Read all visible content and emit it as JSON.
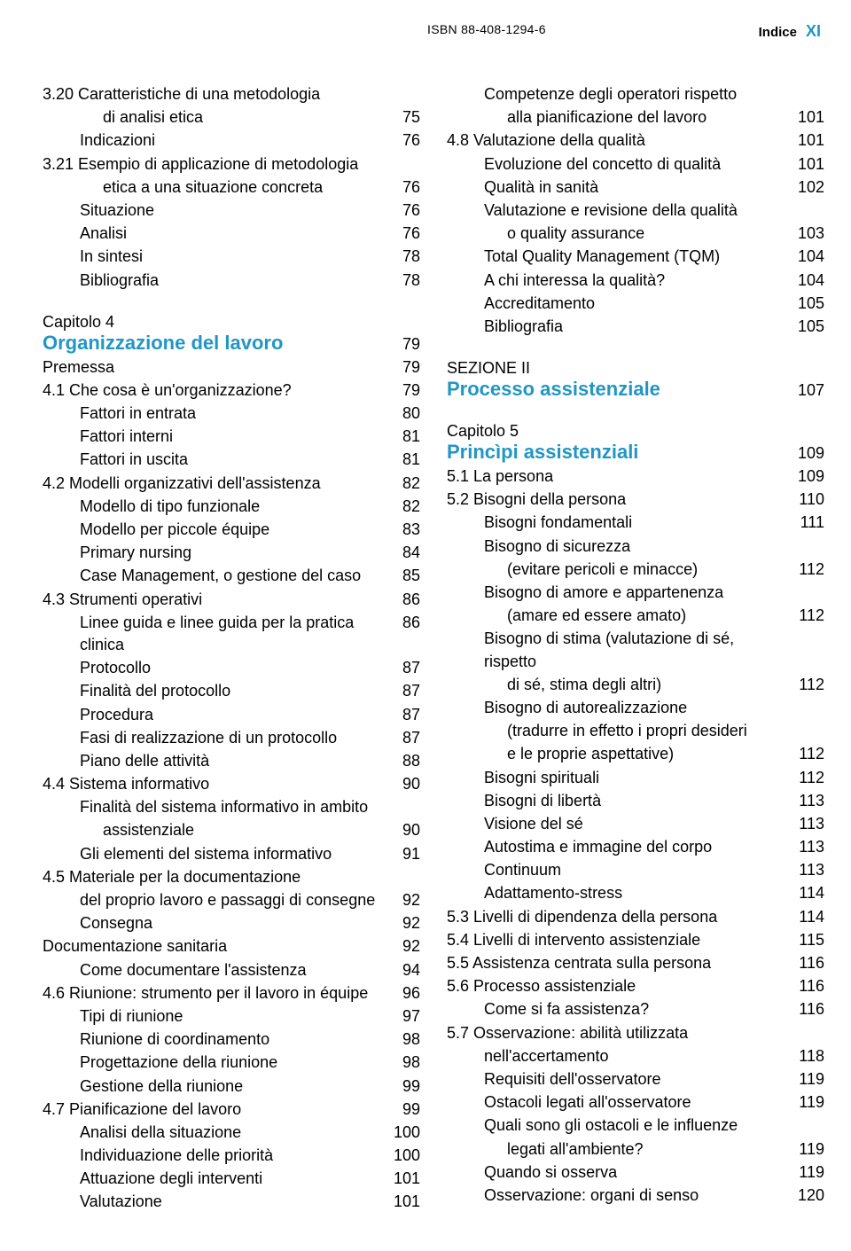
{
  "header": {
    "isbn": "ISBN 88-408-1294-6",
    "indice": "Indice",
    "pagenum": "XI"
  },
  "left": [
    {
      "kind": "entry",
      "cls": "num-entry sub0",
      "label": "3.20 Caratteristiche di una metodologia",
      "pg": ""
    },
    {
      "kind": "entry",
      "cls": "sub2",
      "label": "di analisi etica",
      "pg": "75"
    },
    {
      "kind": "entry",
      "cls": "sub1",
      "label": "Indicazioni",
      "pg": "76"
    },
    {
      "kind": "entry",
      "cls": "num-entry sub0",
      "label": "3.21 Esempio di applicazione di metodologia",
      "pg": ""
    },
    {
      "kind": "entry",
      "cls": "sub2",
      "label": "etica a una situazione concreta",
      "pg": "76"
    },
    {
      "kind": "entry",
      "cls": "sub1",
      "label": "Situazione",
      "pg": "76"
    },
    {
      "kind": "entry",
      "cls": "sub1",
      "label": "Analisi",
      "pg": "76"
    },
    {
      "kind": "entry",
      "cls": "sub1",
      "label": "In sintesi",
      "pg": "78"
    },
    {
      "kind": "entry",
      "cls": "sub1",
      "label": "Bibliografia",
      "pg": "78"
    },
    {
      "kind": "chapter-label",
      "label": "Capitolo 4"
    },
    {
      "kind": "chapter-title",
      "label": "Organizzazione del lavoro",
      "pg": "79"
    },
    {
      "kind": "entry",
      "cls": "sub0",
      "label": "Premessa",
      "pg": "79"
    },
    {
      "kind": "entry",
      "cls": "num-entry sub0",
      "label": "4.1  Che cosa è un'organizzazione?",
      "pg": "79"
    },
    {
      "kind": "entry",
      "cls": "sub1",
      "label": "Fattori in entrata",
      "pg": "80"
    },
    {
      "kind": "entry",
      "cls": "sub1",
      "label": "Fattori interni",
      "pg": "81"
    },
    {
      "kind": "entry",
      "cls": "sub1",
      "label": "Fattori in uscita",
      "pg": "81"
    },
    {
      "kind": "entry",
      "cls": "num-entry sub0",
      "label": "4.2  Modelli organizzativi dell'assistenza",
      "pg": "82"
    },
    {
      "kind": "entry",
      "cls": "sub1",
      "label": "Modello di tipo funzionale",
      "pg": "82"
    },
    {
      "kind": "entry",
      "cls": "sub1",
      "label": "Modello per piccole équipe",
      "pg": "83"
    },
    {
      "kind": "entry",
      "cls": "sub1",
      "label": "Primary nursing",
      "pg": "84"
    },
    {
      "kind": "entry",
      "cls": "sub1",
      "label": "Case Management, o gestione del caso",
      "pg": "85"
    },
    {
      "kind": "entry",
      "cls": "num-entry sub0",
      "label": "4.3  Strumenti operativi",
      "pg": "86"
    },
    {
      "kind": "entry",
      "cls": "sub1",
      "label": "Linee guida e linee guida per la pratica clinica",
      "pg": "86"
    },
    {
      "kind": "entry",
      "cls": "sub1",
      "label": "Protocollo",
      "pg": "87"
    },
    {
      "kind": "entry",
      "cls": "sub1",
      "label": "Finalità del protocollo",
      "pg": "87"
    },
    {
      "kind": "entry",
      "cls": "sub1",
      "label": "Procedura",
      "pg": "87"
    },
    {
      "kind": "entry",
      "cls": "sub1",
      "label": "Fasi di realizzazione di un protocollo",
      "pg": "87"
    },
    {
      "kind": "entry",
      "cls": "sub1",
      "label": "Piano delle attività",
      "pg": "88"
    },
    {
      "kind": "entry",
      "cls": "num-entry sub0",
      "label": "4.4  Sistema informativo",
      "pg": "90"
    },
    {
      "kind": "entry",
      "cls": "sub1",
      "label": "Finalità del sistema informativo in ambito",
      "pg": ""
    },
    {
      "kind": "entry",
      "cls": "sub2",
      "label": "assistenziale",
      "pg": "90"
    },
    {
      "kind": "entry",
      "cls": "sub1",
      "label": "Gli elementi del sistema informativo",
      "pg": "91"
    },
    {
      "kind": "entry",
      "cls": "num-entry sub0",
      "label": "4.5  Materiale per la documentazione",
      "pg": ""
    },
    {
      "kind": "entry",
      "cls": "sub1",
      "label": "del proprio lavoro e passaggi di consegne",
      "pg": "92"
    },
    {
      "kind": "entry",
      "cls": "sub1",
      "label": "Consegna",
      "pg": "92"
    },
    {
      "kind": "entry",
      "cls": "sub0",
      "label": "Documentazione sanitaria",
      "pg": "92"
    },
    {
      "kind": "entry",
      "cls": "sub1",
      "label": "Come documentare l'assistenza",
      "pg": "94"
    },
    {
      "kind": "entry",
      "cls": "num-entry sub0",
      "label": "4.6  Riunione: strumento per il lavoro in équipe",
      "pg": "96"
    },
    {
      "kind": "entry",
      "cls": "sub1",
      "label": "Tipi di riunione",
      "pg": "97"
    },
    {
      "kind": "entry",
      "cls": "sub1",
      "label": "Riunione di coordinamento",
      "pg": "98"
    },
    {
      "kind": "entry",
      "cls": "sub1",
      "label": "Progettazione della riunione",
      "pg": "98"
    },
    {
      "kind": "entry",
      "cls": "sub1",
      "label": "Gestione della riunione",
      "pg": "99"
    },
    {
      "kind": "entry",
      "cls": "num-entry sub0",
      "label": "4.7  Pianificazione del lavoro",
      "pg": "99"
    },
    {
      "kind": "entry",
      "cls": "sub1",
      "label": "Analisi della situazione",
      "pg": "100"
    },
    {
      "kind": "entry",
      "cls": "sub1",
      "label": "Individuazione delle priorità",
      "pg": "100"
    },
    {
      "kind": "entry",
      "cls": "sub1",
      "label": "Attuazione degli interventi",
      "pg": "101"
    },
    {
      "kind": "entry",
      "cls": "sub1",
      "label": "Valutazione",
      "pg": "101"
    }
  ],
  "right": [
    {
      "kind": "entry",
      "cls": "sub1",
      "label": "Competenze degli operatori rispetto",
      "pg": ""
    },
    {
      "kind": "entry",
      "cls": "sub2",
      "label": "alla pianificazione del lavoro",
      "pg": "101"
    },
    {
      "kind": "entry",
      "cls": "num-entry sub0",
      "label": "4.8  Valutazione della qualità",
      "pg": "101"
    },
    {
      "kind": "entry",
      "cls": "sub1",
      "label": "Evoluzione del concetto di qualità",
      "pg": "101"
    },
    {
      "kind": "entry",
      "cls": "sub1",
      "label": "Qualità in sanità",
      "pg": "102"
    },
    {
      "kind": "entry",
      "cls": "sub1",
      "label": "Valutazione e revisione della qualità",
      "pg": ""
    },
    {
      "kind": "entry",
      "cls": "sub2",
      "label": "o quality assurance",
      "pg": "103"
    },
    {
      "kind": "entry",
      "cls": "sub1",
      "label": "Total Quality Management (TQM)",
      "pg": "104"
    },
    {
      "kind": "entry",
      "cls": "sub1",
      "label": "A chi interessa la qualità?",
      "pg": "104"
    },
    {
      "kind": "entry",
      "cls": "sub1",
      "label": "Accreditamento",
      "pg": "105"
    },
    {
      "kind": "entry",
      "cls": "sub1",
      "label": "Bibliografia",
      "pg": "105"
    },
    {
      "kind": "section-title",
      "label": "SEZIONE II"
    },
    {
      "kind": "section-main",
      "label": "Processo assistenziale",
      "pg": "107"
    },
    {
      "kind": "chapter-label",
      "label": "Capitolo 5"
    },
    {
      "kind": "chapter-title",
      "label": "Princìpi assistenziali",
      "pg": "109"
    },
    {
      "kind": "entry",
      "cls": "num-entry sub0",
      "label": "5.1  La persona",
      "pg": "109"
    },
    {
      "kind": "entry",
      "cls": "num-entry sub0",
      "label": "5.2  Bisogni della persona",
      "pg": "110"
    },
    {
      "kind": "entry",
      "cls": "sub1",
      "label": "Bisogni fondamentali",
      "pg": "111"
    },
    {
      "kind": "entry",
      "cls": "sub1",
      "label": "Bisogno di sicurezza",
      "pg": ""
    },
    {
      "kind": "entry",
      "cls": "sub2",
      "label": "(evitare pericoli e minacce)",
      "pg": "112"
    },
    {
      "kind": "entry",
      "cls": "sub1",
      "label": "Bisogno di amore e appartenenza",
      "pg": ""
    },
    {
      "kind": "entry",
      "cls": "sub2",
      "label": "(amare ed essere amato)",
      "pg": "112"
    },
    {
      "kind": "entry",
      "cls": "sub1",
      "label": "Bisogno di stima (valutazione di sé, rispetto",
      "pg": ""
    },
    {
      "kind": "entry",
      "cls": "sub2",
      "label": "di sé, stima degli altri)",
      "pg": "112"
    },
    {
      "kind": "entry",
      "cls": "sub1",
      "label": "Bisogno di autorealizzazione",
      "pg": ""
    },
    {
      "kind": "entry",
      "cls": "sub2",
      "label": "(tradurre in effetto i propri desideri",
      "pg": ""
    },
    {
      "kind": "entry",
      "cls": "sub2",
      "label": "e le proprie aspettative)",
      "pg": "112"
    },
    {
      "kind": "entry",
      "cls": "sub1",
      "label": "Bisogni spirituali",
      "pg": "112"
    },
    {
      "kind": "entry",
      "cls": "sub1",
      "label": "Bisogni di libertà",
      "pg": "113"
    },
    {
      "kind": "entry",
      "cls": "sub1",
      "label": "Visione del sé",
      "pg": "113"
    },
    {
      "kind": "entry",
      "cls": "sub1",
      "label": "Autostima e immagine del corpo",
      "pg": "113"
    },
    {
      "kind": "entry",
      "cls": "sub1",
      "label": "Continuum",
      "pg": "113"
    },
    {
      "kind": "entry",
      "cls": "sub1",
      "label": "Adattamento-stress",
      "pg": "114"
    },
    {
      "kind": "entry",
      "cls": "num-entry sub0",
      "label": "5.3  Livelli di dipendenza della persona",
      "pg": "114"
    },
    {
      "kind": "entry",
      "cls": "num-entry sub0",
      "label": "5.4  Livelli di intervento assistenziale",
      "pg": "115"
    },
    {
      "kind": "entry",
      "cls": "num-entry sub0",
      "label": "5.5  Assistenza centrata sulla persona",
      "pg": "116"
    },
    {
      "kind": "entry",
      "cls": "num-entry sub0",
      "label": "5.6  Processo assistenziale",
      "pg": "116"
    },
    {
      "kind": "entry",
      "cls": "sub1",
      "label": "Come si fa assistenza?",
      "pg": "116"
    },
    {
      "kind": "entry",
      "cls": "num-entry sub0",
      "label": "5.7  Osservazione: abilità utilizzata",
      "pg": ""
    },
    {
      "kind": "entry",
      "cls": "sub1",
      "label": "nell'accertamento",
      "pg": "118"
    },
    {
      "kind": "entry",
      "cls": "sub1",
      "label": "Requisiti dell'osservatore",
      "pg": "119"
    },
    {
      "kind": "entry",
      "cls": "sub1",
      "label": "Ostacoli legati all'osservatore",
      "pg": "119"
    },
    {
      "kind": "entry",
      "cls": "sub1",
      "label": "Quali sono gli ostacoli e le influenze",
      "pg": ""
    },
    {
      "kind": "entry",
      "cls": "sub2",
      "label": "legati all'ambiente?",
      "pg": "119"
    },
    {
      "kind": "entry",
      "cls": "sub1",
      "label": "Quando si osserva",
      "pg": "119"
    },
    {
      "kind": "entry",
      "cls": "sub1",
      "label": "Osservazione: organi di senso",
      "pg": "120"
    }
  ]
}
